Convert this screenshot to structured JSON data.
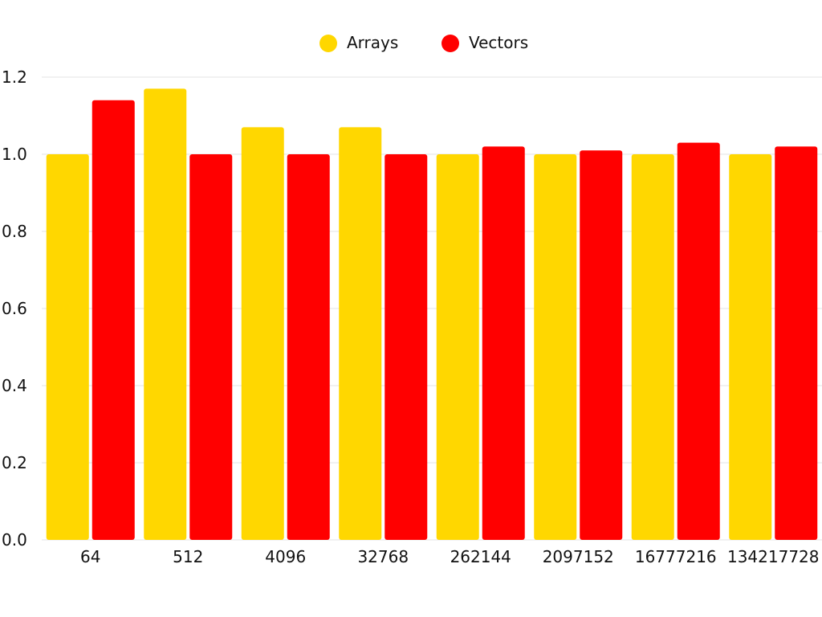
{
  "chart_data": {
    "type": "bar",
    "categories": [
      "64",
      "512",
      "4096",
      "32768",
      "262144",
      "2097152",
      "16777216",
      "134217728"
    ],
    "series": [
      {
        "name": "Arrays",
        "color": "#FFD700",
        "values": [
          1.0,
          1.17,
          1.07,
          1.07,
          1.0,
          1.0,
          1.0,
          1.0
        ]
      },
      {
        "name": "Vectors",
        "color": "#FF0000",
        "values": [
          1.14,
          1.0,
          1.0,
          1.0,
          1.02,
          1.01,
          1.03,
          1.02
        ]
      }
    ],
    "ylim": [
      0,
      1.2
    ],
    "yticks": [
      "0.0",
      "0.2",
      "0.4",
      "0.6",
      "0.8",
      "1.0",
      "1.2"
    ],
    "grid": true,
    "legend_position": "top-center",
    "gridline_color": "#e3e3e3"
  }
}
